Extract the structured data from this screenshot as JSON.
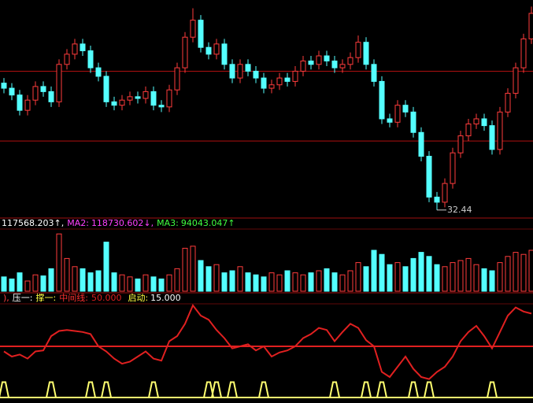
{
  "chart_data": [
    {
      "type": "candlestick",
      "up_color": "#ff3c3c",
      "down_color": "#54ffff",
      "ylim": [
        32.2,
        44.6
      ],
      "hlines": [
        40.6,
        36.5
      ],
      "hline_color": "#b01010",
      "open": [
        39.9,
        39.6,
        39.2,
        38.3,
        38.9,
        39.7,
        39.4,
        38.8,
        41.0,
        41.6,
        42.2,
        41.8,
        40.8,
        40.3,
        38.8,
        38.6,
        38.9,
        39.1,
        39.0,
        39.4,
        38.6,
        38.5,
        39.5,
        40.8,
        42.6,
        43.6,
        42.0,
        41.6,
        42.2,
        41.0,
        40.2,
        41.0,
        40.6,
        40.2,
        39.6,
        39.8,
        40.2,
        40.0,
        40.6,
        41.2,
        41.0,
        41.5,
        41.2,
        40.8,
        41.0,
        41.4,
        42.3,
        41.0,
        40.0,
        37.8,
        37.6,
        38.6,
        38.2,
        37.0,
        35.6,
        33.2,
        32.9,
        34.0,
        35.8,
        36.8,
        37.5,
        37.8,
        37.4,
        36.0,
        38.2,
        39.3,
        40.8,
        42.5
      ],
      "high": [
        40.2,
        39.9,
        39.5,
        39.2,
        40.0,
        40.0,
        39.7,
        41.3,
        41.9,
        42.5,
        42.5,
        42.1,
        41.1,
        40.6,
        39.1,
        39.2,
        39.4,
        39.4,
        39.7,
        39.7,
        38.9,
        39.8,
        41.1,
        42.9,
        44.3,
        43.9,
        42.3,
        42.5,
        42.5,
        41.3,
        41.3,
        41.3,
        40.9,
        40.5,
        40.1,
        40.5,
        40.5,
        40.9,
        41.5,
        41.5,
        41.8,
        41.8,
        41.5,
        41.3,
        41.7,
        42.7,
        42.6,
        41.3,
        40.3,
        38.1,
        38.9,
        38.9,
        38.5,
        37.3,
        35.9,
        33.5,
        34.3,
        36.1,
        37.1,
        37.8,
        38.1,
        38.1,
        37.7,
        38.5,
        39.6,
        41.1,
        42.8,
        44.4
      ],
      "low": [
        39.3,
        38.9,
        38.0,
        38.0,
        38.6,
        39.1,
        38.5,
        38.5,
        40.7,
        41.3,
        41.5,
        40.5,
        40.0,
        38.5,
        38.3,
        38.3,
        38.6,
        38.7,
        38.7,
        38.3,
        38.2,
        38.2,
        39.2,
        40.5,
        42.3,
        41.7,
        41.3,
        41.3,
        40.7,
        39.9,
        39.9,
        40.3,
        39.9,
        39.3,
        39.3,
        39.5,
        39.7,
        39.7,
        40.3,
        40.7,
        40.7,
        40.9,
        40.5,
        40.5,
        40.7,
        41.1,
        40.7,
        39.7,
        37.5,
        37.3,
        37.3,
        37.9,
        36.7,
        35.3,
        32.9,
        32.44,
        32.6,
        33.7,
        35.5,
        36.5,
        37.2,
        37.1,
        35.7,
        35.7,
        37.9,
        39.0,
        40.5,
        42.2
      ],
      "close": [
        39.6,
        39.2,
        38.3,
        38.9,
        39.7,
        39.4,
        38.8,
        41.0,
        41.6,
        42.2,
        41.8,
        40.8,
        40.3,
        38.8,
        38.6,
        38.9,
        39.1,
        39.0,
        39.4,
        38.6,
        38.5,
        39.5,
        40.8,
        42.6,
        43.6,
        42.0,
        41.6,
        42.2,
        41.0,
        40.2,
        41.0,
        40.6,
        40.2,
        39.6,
        39.8,
        40.2,
        40.0,
        40.6,
        41.2,
        41.0,
        41.5,
        41.2,
        40.8,
        41.0,
        41.4,
        42.3,
        41.0,
        40.0,
        37.8,
        37.6,
        38.6,
        38.2,
        37.0,
        35.6,
        33.2,
        32.9,
        34.0,
        35.8,
        36.8,
        37.5,
        37.8,
        37.4,
        36.0,
        38.2,
        39.3,
        40.8,
        42.5,
        44.0
      ],
      "low_label_index": 55
    },
    {
      "type": "volume",
      "ylim": [
        0,
        300000
      ],
      "readouts": [
        {
          "value": 117568.203,
          "trend": "↑,",
          "color": "#ffffff"
        },
        {
          "name": "MA2:",
          "value": 118730.602,
          "trend": "↓,",
          "color": "#ff40ff"
        },
        {
          "name": "MA3:",
          "value": 94043.047,
          "trend": "↑",
          "color": "#40ff40"
        }
      ],
      "values": [
        70000,
        60000,
        90000,
        50000,
        80000,
        75000,
        110000,
        280000,
        160000,
        120000,
        110000,
        90000,
        100000,
        240000,
        90000,
        80000,
        70000,
        60000,
        80000,
        70000,
        60000,
        80000,
        110000,
        210000,
        220000,
        150000,
        120000,
        130000,
        90000,
        100000,
        120000,
        90000,
        80000,
        70000,
        90000,
        80000,
        100000,
        90000,
        80000,
        90000,
        100000,
        110000,
        90000,
        80000,
        100000,
        140000,
        120000,
        200000,
        180000,
        130000,
        140000,
        120000,
        160000,
        190000,
        170000,
        130000,
        120000,
        140000,
        150000,
        160000,
        130000,
        110000,
        100000,
        140000,
        170000,
        190000,
        180000,
        200000
      ]
    },
    {
      "type": "line",
      "ylim": [
        0,
        100
      ],
      "color": "#e02020",
      "pulse_color": "#ffff70",
      "legend": [
        {
          "name": "),",
          "color": "#ff4040"
        },
        {
          "name": "压一:",
          "color": "#ffffff"
        },
        {
          "name": "撑一:",
          "color": "#ffff40"
        },
        {
          "name": "中间线:",
          "color": "#ff3030"
        }
      ],
      "midline": {
        "value": 50,
        "label": "50.000"
      },
      "start_name": "启动:",
      "start": {
        "value": 15,
        "label": "15.000"
      },
      "values": [
        45,
        40,
        42,
        38,
        45,
        46,
        60,
        65,
        66,
        65,
        64,
        62,
        50,
        45,
        38,
        33,
        35,
        40,
        45,
        38,
        36,
        55,
        60,
        72,
        90,
        80,
        76,
        66,
        58,
        48,
        50,
        52,
        46,
        50,
        40,
        44,
        46,
        50,
        58,
        62,
        68,
        66,
        55,
        64,
        72,
        68,
        56,
        50,
        25,
        20,
        30,
        40,
        28,
        20,
        18,
        25,
        30,
        40,
        55,
        64,
        70,
        60,
        48,
        64,
        80,
        88,
        84,
        82
      ],
      "pulses": [
        15,
        0,
        0,
        0,
        0,
        0,
        15,
        0,
        0,
        0,
        0,
        15,
        0,
        15,
        0,
        0,
        0,
        0,
        0,
        15,
        0,
        0,
        0,
        0,
        0,
        0,
        15,
        15,
        0,
        15,
        0,
        0,
        0,
        15,
        0,
        0,
        0,
        0,
        0,
        0,
        0,
        0,
        15,
        0,
        0,
        0,
        15,
        0,
        15,
        0,
        0,
        0,
        15,
        0,
        15,
        0,
        0,
        0,
        0,
        0,
        0,
        0,
        15,
        0,
        0,
        0,
        0,
        0
      ]
    }
  ]
}
